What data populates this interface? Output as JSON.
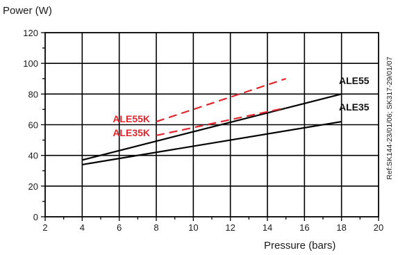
{
  "chart_data": {
    "type": "line",
    "ylabel": "Power (W)",
    "xlabel": "Pressure (bars)",
    "xlim": [
      2,
      20
    ],
    "ylim": [
      0,
      120
    ],
    "x_ticks": [
      2,
      4,
      6,
      8,
      10,
      12,
      14,
      16,
      18,
      20
    ],
    "y_ticks": [
      0,
      20,
      40,
      60,
      80,
      100,
      120
    ],
    "grid": true,
    "series": [
      {
        "name": "ALE55",
        "style": "solid",
        "color": "#000000",
        "points": [
          [
            4,
            37
          ],
          [
            18,
            80
          ]
        ]
      },
      {
        "name": "ALE35",
        "style": "solid",
        "color": "#000000",
        "points": [
          [
            4,
            34
          ],
          [
            18,
            62
          ]
        ]
      },
      {
        "name": "ALE55K",
        "style": "dashed",
        "color": "#e0262b",
        "points": [
          [
            8,
            62
          ],
          [
            15,
            90
          ]
        ]
      },
      {
        "name": "ALE35K",
        "style": "dashed",
        "color": "#e0262b",
        "points": [
          [
            8,
            53
          ],
          [
            15,
            71
          ]
        ]
      }
    ],
    "reference_note": "Ref:SK144-23/01/06; SK317-29/01/07"
  }
}
